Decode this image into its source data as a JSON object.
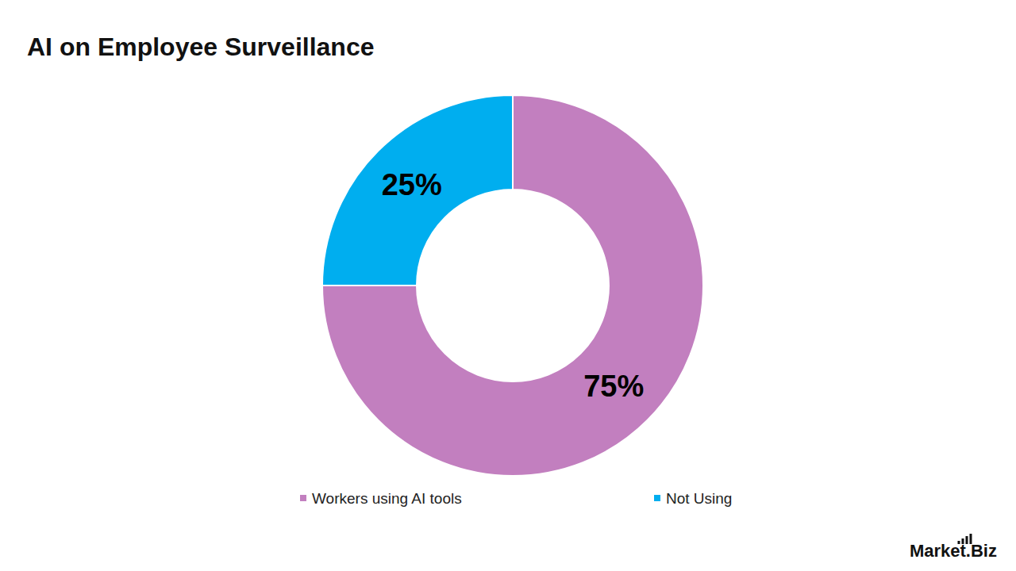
{
  "chart_data": {
    "type": "pie",
    "title": "AI on Employee Surveillance",
    "categories": [
      "Workers using AI tools",
      "Not Using"
    ],
    "values": [
      75,
      25
    ],
    "value_labels": [
      "75%",
      "25%"
    ],
    "colors": [
      "#c27fbf",
      "#00aeef"
    ],
    "data_labels": true,
    "legend": "bottom",
    "source": "Market.Biz"
  }
}
